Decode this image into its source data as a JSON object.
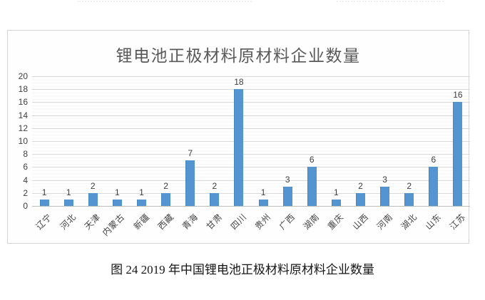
{
  "page": {
    "caption": "图 24 2019 年中国锂电池正极材料原材料企业数量"
  },
  "chart_data": {
    "type": "bar",
    "title": "锂电池正极材料原材料企业数量",
    "categories": [
      "辽宁",
      "河北",
      "天津",
      "内蒙古",
      "新疆",
      "西藏",
      "青海",
      "甘肃",
      "四川",
      "贵州",
      "广西",
      "湖南",
      "重庆",
      "山西",
      "河南",
      "湖北",
      "山东",
      "江苏"
    ],
    "values": [
      1,
      1,
      2,
      1,
      1,
      2,
      7,
      2,
      18,
      1,
      3,
      6,
      1,
      2,
      3,
      2,
      6,
      16
    ],
    "title_color": "#595959",
    "bar_color": "#5494d0",
    "xlabel": "",
    "ylabel": "",
    "ylim": [
      0,
      20
    ],
    "ytick_step": 2,
    "yticks": [
      0,
      2,
      4,
      6,
      8,
      10,
      12,
      14,
      16,
      18,
      20
    ],
    "grid": true,
    "legend": "none",
    "data_labels": true
  }
}
